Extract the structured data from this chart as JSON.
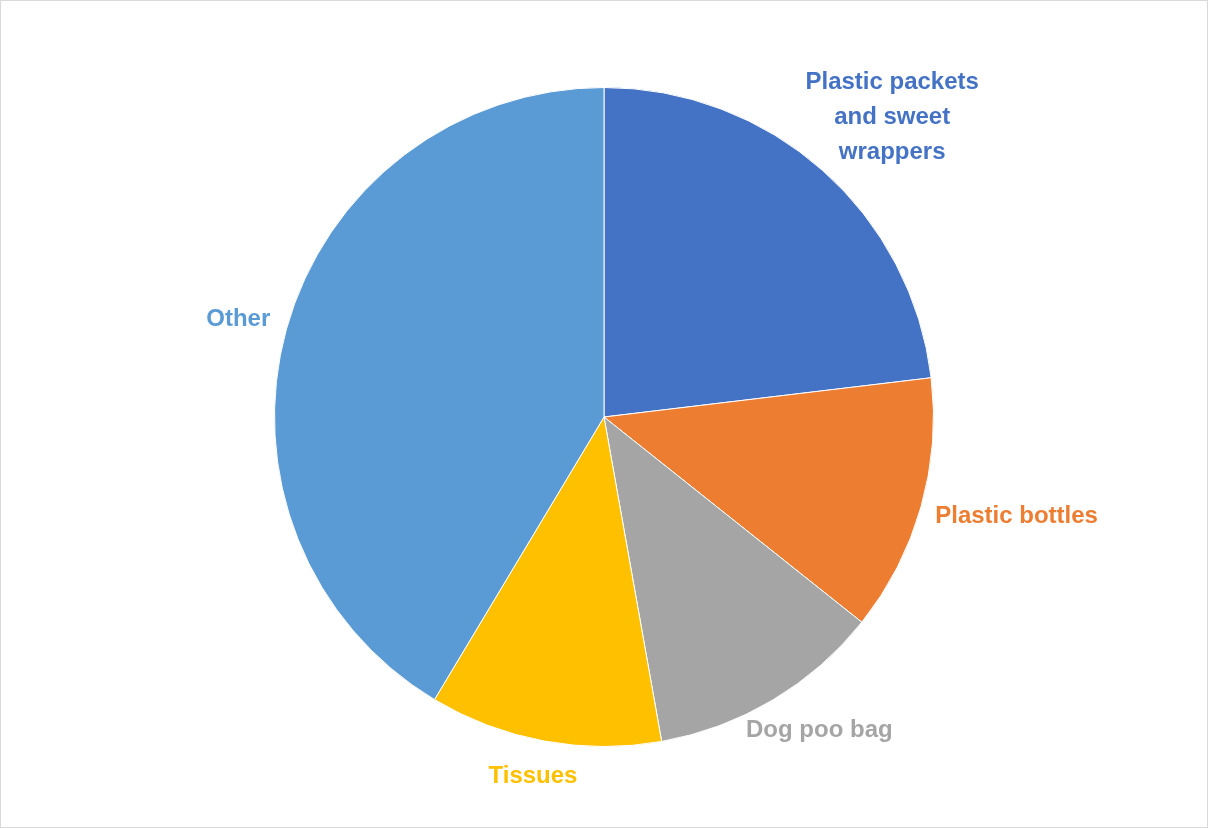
{
  "chart_data": {
    "type": "pie",
    "categories": [
      "Plastic packets and sweet wrappers",
      "Plastic bottles",
      "Dog poo bag",
      "Tissues",
      "Other"
    ],
    "values": [
      23.1,
      12.6,
      11.5,
      11.4,
      41.4
    ],
    "colors": [
      "#4472c4",
      "#ed7d31",
      "#a5a5a5",
      "#ffc000",
      "#5b9bd5"
    ],
    "legend": false
  }
}
